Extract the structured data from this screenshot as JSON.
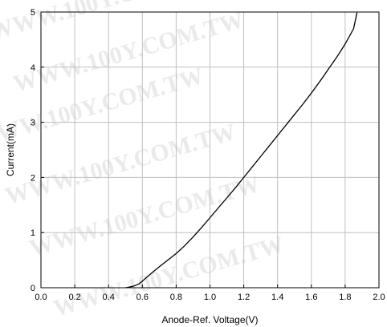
{
  "watermark": "WWW.100Y.COM.TW",
  "chart_data": {
    "type": "line",
    "title": "",
    "xlabel": "Anode-Ref. Voltage(V)",
    "ylabel": "Current(mA)",
    "xlim": [
      0.0,
      2.0
    ],
    "ylim": [
      0,
      5
    ],
    "xticks": [
      "0.0",
      "0.2",
      "0.4",
      "0.6",
      "0.8",
      "1.0",
      "1.2",
      "1.4",
      "1.6",
      "1.8",
      "2.0"
    ],
    "yticks": [
      "0",
      "1",
      "2",
      "3",
      "4",
      "5"
    ],
    "grid": true,
    "legend": "none",
    "line_color": "#000000",
    "grid_color": "#c0c0c0",
    "series": [
      {
        "x": [
          0.5,
          0.52,
          0.55,
          0.58,
          0.6,
          0.63,
          0.66,
          0.7,
          0.75,
          0.8,
          0.85,
          0.9,
          0.95,
          1.0,
          1.05,
          1.1,
          1.15,
          1.2,
          1.25,
          1.3,
          1.35,
          1.4,
          1.45,
          1.5,
          1.55,
          1.6,
          1.65,
          1.7,
          1.75,
          1.8,
          1.85,
          1.87
        ],
        "y": [
          0.0,
          0.01,
          0.03,
          0.07,
          0.12,
          0.2,
          0.28,
          0.38,
          0.5,
          0.62,
          0.76,
          0.92,
          1.09,
          1.27,
          1.45,
          1.63,
          1.81,
          2.0,
          2.19,
          2.38,
          2.57,
          2.76,
          2.95,
          3.14,
          3.33,
          3.53,
          3.74,
          3.96,
          4.18,
          4.42,
          4.7,
          4.99
        ]
      }
    ]
  }
}
